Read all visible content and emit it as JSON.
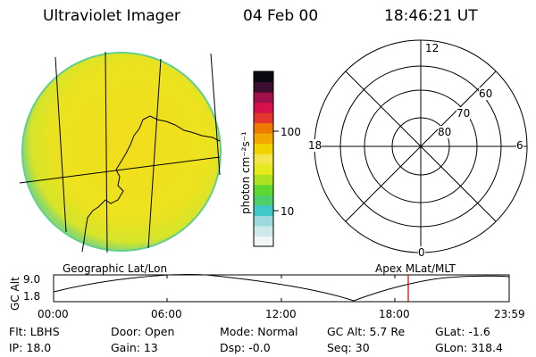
{
  "header": {
    "title": "Ultraviolet Imager",
    "date": "04 Feb 00",
    "time": "18:46:21 UT"
  },
  "colorbar": {
    "unit_label": "photon cm⁻²s⁻¹",
    "ticks": [
      "100",
      "10"
    ],
    "colors": [
      "#f3f6f6",
      "#cde8e8",
      "#9cd9dd",
      "#3fc7c9",
      "#4fcf6a",
      "#5ed830",
      "#aee11f",
      "#e5ea1e",
      "#f4e64a",
      "#f2d300",
      "#f1a600",
      "#ee7a00",
      "#e3372e",
      "#d5124a",
      "#a0114c",
      "#3d0d30",
      "#0b0912"
    ]
  },
  "polar_plot": {
    "hour_labels": {
      "top": "12",
      "left": "18",
      "right": "6",
      "bottom": "0"
    },
    "lat_labels": [
      "60",
      "70",
      "80"
    ]
  },
  "timeline": {
    "left_label": "Geographic Lat/Lon",
    "right_label": "Apex MLat/MLT",
    "y_axis_title": "GC Alt",
    "y_ticks": [
      "9.0",
      "1.8"
    ],
    "x_ticks": [
      "00:00",
      "06:00",
      "12:00",
      "18:00",
      "23:59"
    ],
    "marker_color": "#cc0000"
  },
  "status": {
    "flt": "Flt: LBHS",
    "door": "Door: Open",
    "mode": "Mode: Normal",
    "gc_alt": "GC Alt: 5.7 Re",
    "glat": "GLat:  -1.6",
    "ip": "IP: 18.0",
    "gain": "Gain: 13",
    "dsp": "Dsp:   -0.0",
    "seq": "Seq: 30",
    "glon": "GLon: 318.4"
  }
}
